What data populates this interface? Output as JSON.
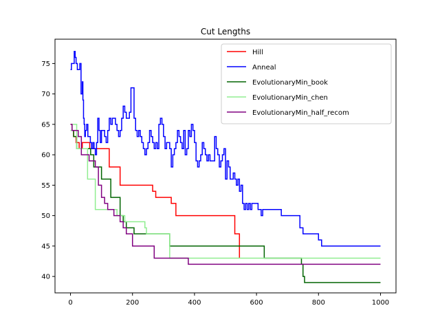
{
  "chart_data": {
    "type": "line",
    "title": "Cut Lengths",
    "xlabel": "",
    "ylabel": "",
    "xlim": [
      -50,
      1050
    ],
    "ylim": [
      37.3,
      79.0
    ],
    "xticks": [
      0,
      200,
      400,
      600,
      800,
      1000
    ],
    "yticks": [
      40,
      45,
      50,
      55,
      60,
      65,
      70,
      75
    ],
    "grid": false,
    "legend_position": "top-right",
    "series": [
      {
        "name": "Hill",
        "color": "#ff0000",
        "step": true,
        "x": [
          0,
          5,
          10,
          18,
          28,
          38,
          62,
          75,
          88,
          95,
          125,
          135,
          160,
          250,
          265,
          275,
          325,
          340,
          530,
          540,
          545
        ],
        "y": [
          65,
          64,
          63,
          62,
          61,
          62,
          61,
          61,
          61,
          61,
          58,
          58,
          55,
          55,
          54,
          53,
          52,
          50,
          47,
          47,
          43
        ]
      },
      {
        "name": "Anneal",
        "color": "#0000ff",
        "step": true,
        "x": [
          0,
          3,
          8,
          12,
          15,
          18,
          22,
          26,
          30,
          34,
          38,
          40,
          42,
          44,
          46,
          48,
          52,
          56,
          60,
          64,
          68,
          72,
          76,
          80,
          84,
          88,
          92,
          96,
          100,
          105,
          110,
          115,
          120,
          125,
          130,
          135,
          140,
          145,
          150,
          155,
          160,
          165,
          170,
          175,
          180,
          185,
          190,
          195,
          200,
          205,
          210,
          215,
          220,
          225,
          230,
          235,
          240,
          245,
          250,
          255,
          260,
          265,
          270,
          275,
          280,
          285,
          290,
          295,
          300,
          305,
          310,
          315,
          320,
          325,
          330,
          335,
          340,
          345,
          350,
          355,
          360,
          365,
          370,
          375,
          380,
          385,
          390,
          395,
          400,
          405,
          410,
          415,
          420,
          425,
          430,
          435,
          440,
          445,
          450,
          455,
          460,
          465,
          470,
          475,
          480,
          485,
          490,
          495,
          500,
          505,
          510,
          515,
          520,
          525,
          530,
          535,
          540,
          545,
          550,
          555,
          560,
          565,
          570,
          575,
          580,
          585,
          590,
          600,
          605,
          610,
          615,
          620,
          680,
          690,
          740,
          750,
          800,
          810,
          1000
        ],
        "y": [
          74,
          75,
          75,
          77,
          76,
          75,
          74,
          74,
          75,
          70,
          72,
          69,
          66,
          65,
          63,
          64,
          65,
          63,
          63,
          62,
          61,
          62,
          61,
          60,
          62,
          66,
          64,
          62,
          64,
          64,
          63,
          62,
          64,
          66,
          65,
          66,
          66,
          65,
          64,
          63,
          64,
          66,
          68,
          67,
          66,
          66,
          67,
          71,
          71,
          66,
          64,
          63,
          64,
          63,
          62,
          61,
          60,
          61,
          62,
          64,
          63,
          62,
          61,
          62,
          61,
          65,
          66,
          65,
          63,
          61,
          62,
          62,
          61,
          58,
          60,
          61,
          62,
          64,
          63,
          62,
          61,
          64,
          60,
          61,
          64,
          63,
          65,
          64,
          62,
          59,
          58,
          59,
          60,
          62,
          61,
          60,
          59,
          60,
          59,
          59,
          59,
          63,
          61,
          60,
          58,
          59,
          60,
          61,
          56,
          59,
          58,
          56,
          56,
          57,
          56,
          55,
          56,
          54,
          55,
          52,
          51,
          52,
          51,
          52,
          51,
          52,
          52,
          52,
          51,
          51,
          50,
          51,
          50,
          50,
          48,
          47,
          46,
          45,
          45
        ]
      },
      {
        "name": "EvolutionaryMin_book",
        "color": "#006400",
        "step": true,
        "x": [
          0,
          10,
          20,
          30,
          50,
          65,
          75,
          90,
          100,
          120,
          130,
          140,
          160,
          170,
          180,
          195,
          205,
          215,
          225,
          320,
          620,
          625,
          740,
          745,
          750,
          755,
          1000
        ],
        "y": [
          64,
          63,
          61,
          61,
          61,
          60,
          58,
          58,
          56,
          56,
          53,
          53,
          50,
          49,
          48,
          48,
          47,
          47,
          47,
          45,
          45,
          43,
          43,
          42,
          40,
          39,
          39
        ]
      },
      {
        "name": "EvolutionaryMin_chen",
        "color": "#90ee90",
        "step": true,
        "x": [
          0,
          5,
          20,
          40,
          55,
          80,
          95,
          110,
          150,
          175,
          190,
          240,
          245,
          315,
          320,
          550,
          620,
          1000
        ],
        "y": [
          64,
          65,
          61,
          61,
          56,
          51,
          51,
          51,
          50,
          49,
          49,
          48,
          47,
          47,
          43,
          43,
          43,
          43
        ]
      },
      {
        "name": "EvolutionaryMin_half_recom",
        "color": "#800080",
        "step": true,
        "x": [
          0,
          5,
          15,
          25,
          35,
          45,
          60,
          70,
          80,
          90,
          100,
          110,
          120,
          130,
          140,
          150,
          160,
          170,
          180,
          190,
          200,
          210,
          220,
          240,
          270,
          380,
          1000
        ],
        "y": [
          65,
          64,
          64,
          63,
          60,
          60,
          59,
          59,
          58,
          55,
          53,
          52,
          51,
          51,
          50,
          50,
          49,
          48,
          47,
          47,
          45,
          45,
          45,
          45,
          43,
          42,
          42
        ]
      }
    ]
  }
}
